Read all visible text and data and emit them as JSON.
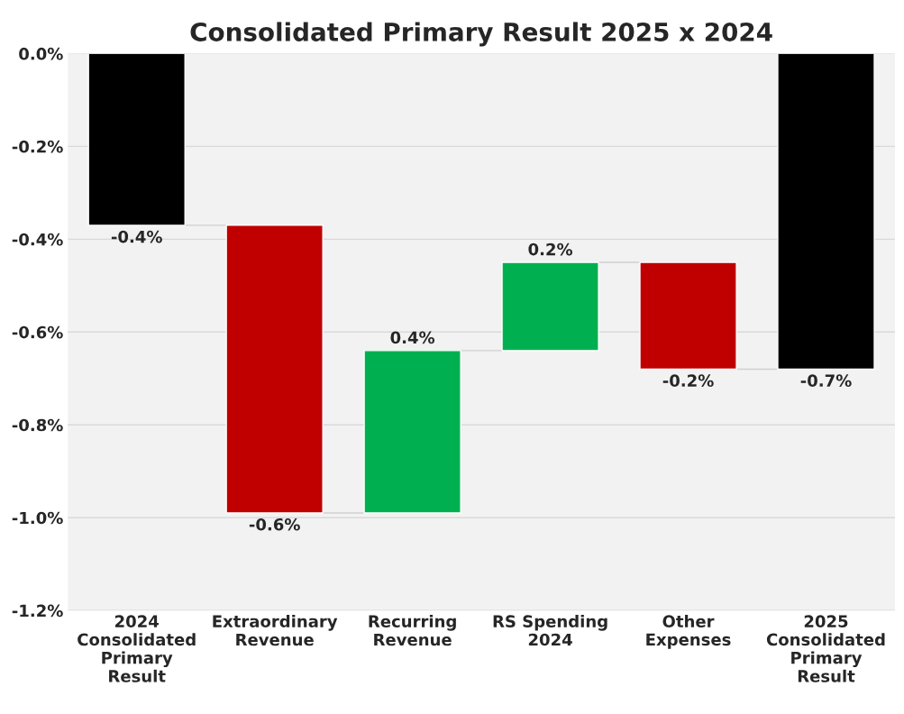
{
  "chart_data": {
    "type": "bar",
    "title": "Consolidated Primary Result 2025 x 2024",
    "categories": [
      "2024\nConsolidated\nPrimary\nResult",
      "Extraordinary\nRevenue",
      "Recurring\nRevenue",
      "RS Spending\n2024",
      "Other\nExpenses",
      "2025\nConsolidated\nPrimary\nResult"
    ],
    "values": [
      -0.37,
      -0.62,
      0.35,
      0.19,
      -0.23,
      -0.68
    ],
    "base": [
      0,
      -0.37,
      -0.99,
      -0.64,
      -0.45,
      0
    ],
    "colors": [
      "#000000",
      "#c00000",
      "#00b050",
      "#00b050",
      "#c00000",
      "#000000"
    ],
    "value_labels": [
      "-0.4%",
      "-0.6%",
      "0.4%",
      "0.2%",
      "-0.2%",
      "-0.7%"
    ],
    "ylim": [
      -1.2,
      0
    ],
    "yticks": [
      {
        "value": 0,
        "label": "0.0%"
      },
      {
        "value": -0.2,
        "label": "-0.2%"
      },
      {
        "value": -0.4,
        "label": "-0.4%"
      },
      {
        "value": -0.6,
        "label": "-0.6%"
      },
      {
        "value": -0.8,
        "label": "-0.8%"
      },
      {
        "value": -1.0,
        "label": "-1.0%"
      },
      {
        "value": -1.2,
        "label": "-1.2%"
      }
    ],
    "grid": "y"
  }
}
